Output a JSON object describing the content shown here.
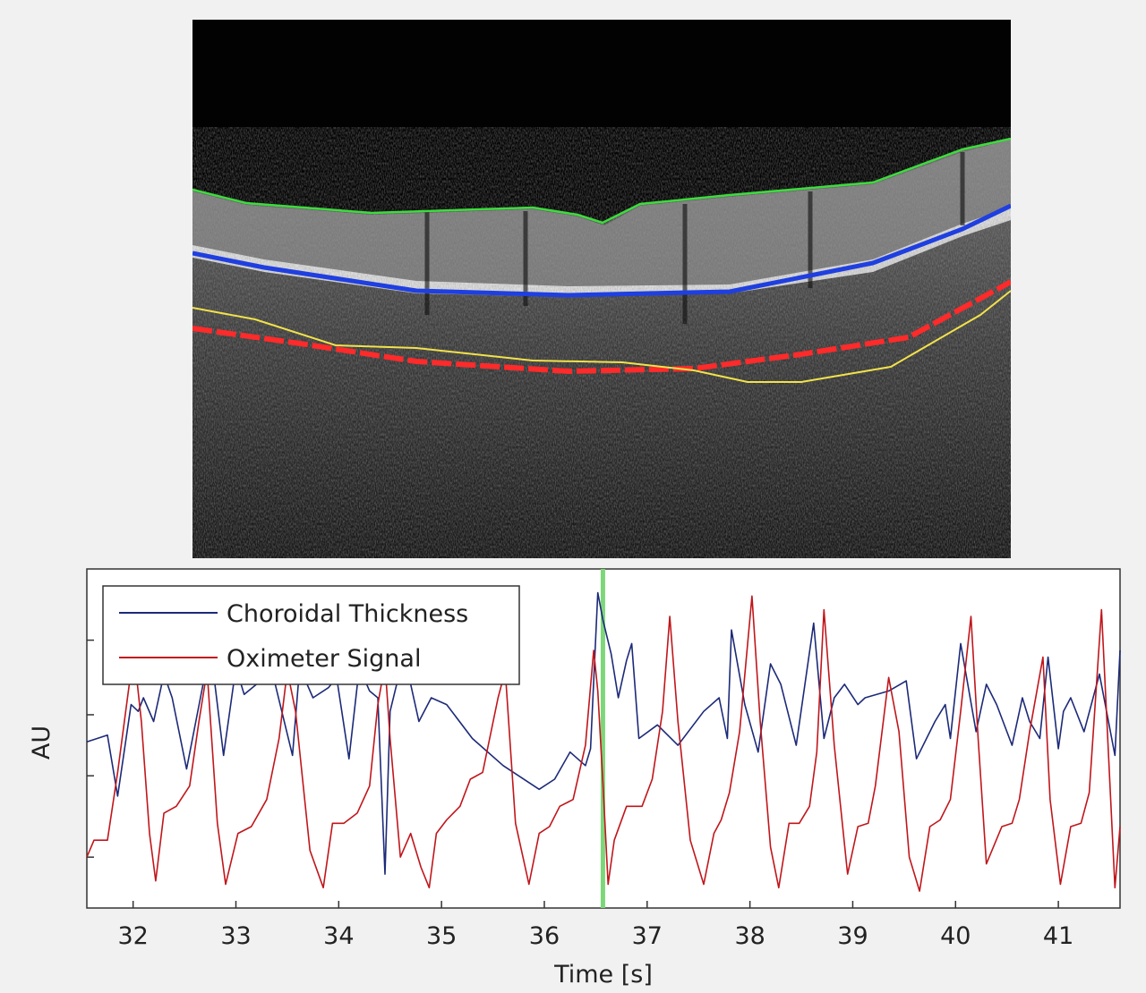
{
  "oct_image": {
    "boundary_colors": {
      "inner_surface": "#3ddc3d",
      "rpe": "#1f3fe0",
      "choroid_red": "#ff2a2a",
      "choroid_yellow": "#f2e24a"
    }
  },
  "chart_data": {
    "type": "line",
    "xlabel": "Time [s]",
    "ylabel": "AU",
    "xlim": [
      31.55,
      41.6
    ],
    "ylim": [
      0,
      1
    ],
    "xticks": [
      32,
      33,
      34,
      35,
      36,
      37,
      38,
      39,
      40,
      41
    ],
    "xtick_labels": [
      "32",
      "33",
      "34",
      "35",
      "36",
      "37",
      "38",
      "39",
      "40",
      "41"
    ],
    "yticks": [
      0.15,
      0.39,
      0.57,
      0.79
    ],
    "grid": false,
    "legend_position": "top-left",
    "marker_line": {
      "x": 36.57,
      "color": "#7ed67a"
    },
    "series": [
      {
        "name": "Choroidal Thickness",
        "color": "#1c2a78",
        "x": [
          31.55,
          31.75,
          31.85,
          31.98,
          32.05,
          32.1,
          32.2,
          32.3,
          32.38,
          32.52,
          32.68,
          32.78,
          32.88,
          33.0,
          33.08,
          33.2,
          33.35,
          33.55,
          33.62,
          33.75,
          33.9,
          33.98,
          34.1,
          34.2,
          34.3,
          34.38,
          34.45,
          34.5,
          34.58,
          34.7,
          34.78,
          34.9,
          35.05,
          35.3,
          35.6,
          35.95,
          36.1,
          36.25,
          36.4,
          36.45,
          36.52,
          36.57,
          36.65,
          36.72,
          36.8,
          36.85,
          36.92,
          37.1,
          37.3,
          37.55,
          37.7,
          37.78,
          37.82,
          37.95,
          38.08,
          38.2,
          38.3,
          38.45,
          38.62,
          38.72,
          38.82,
          38.92,
          39.05,
          39.12,
          39.35,
          39.52,
          39.62,
          39.8,
          39.9,
          39.95,
          40.05,
          40.2,
          40.3,
          40.4,
          40.55,
          40.65,
          40.72,
          40.82,
          40.9,
          41.0,
          41.05,
          41.12,
          41.25,
          41.4,
          41.55,
          41.6
        ],
        "values": [
          0.49,
          0.51,
          0.33,
          0.6,
          0.58,
          0.62,
          0.55,
          0.69,
          0.62,
          0.41,
          0.66,
          0.7,
          0.45,
          0.71,
          0.63,
          0.66,
          0.7,
          0.45,
          0.71,
          0.62,
          0.65,
          0.68,
          0.44,
          0.71,
          0.64,
          0.62,
          0.1,
          0.58,
          0.68,
          0.66,
          0.55,
          0.62,
          0.6,
          0.5,
          0.42,
          0.35,
          0.38,
          0.46,
          0.42,
          0.47,
          0.93,
          0.85,
          0.75,
          0.62,
          0.73,
          0.78,
          0.5,
          0.54,
          0.48,
          0.58,
          0.62,
          0.5,
          0.82,
          0.6,
          0.46,
          0.72,
          0.66,
          0.48,
          0.84,
          0.5,
          0.62,
          0.66,
          0.6,
          0.62,
          0.64,
          0.67,
          0.44,
          0.55,
          0.6,
          0.5,
          0.78,
          0.52,
          0.66,
          0.6,
          0.48,
          0.62,
          0.55,
          0.5,
          0.74,
          0.47,
          0.58,
          0.62,
          0.52,
          0.69,
          0.45,
          0.76
        ]
      },
      {
        "name": "Oximeter Signal",
        "color": "#c0161b",
        "x": [
          31.55,
          31.62,
          31.75,
          31.85,
          31.98,
          32.02,
          32.08,
          32.16,
          32.22,
          32.3,
          32.42,
          32.55,
          32.64,
          32.72,
          32.82,
          32.9,
          33.02,
          33.15,
          33.3,
          33.42,
          33.5,
          33.58,
          33.72,
          33.85,
          33.94,
          34.05,
          34.18,
          34.3,
          34.38,
          34.45,
          34.5,
          34.6,
          34.7,
          34.8,
          34.88,
          34.95,
          35.05,
          35.18,
          35.28,
          35.4,
          35.55,
          35.62,
          35.72,
          35.85,
          35.95,
          36.05,
          36.15,
          36.28,
          36.4,
          36.48,
          36.52,
          36.57,
          36.62,
          36.68,
          36.8,
          36.95,
          37.05,
          37.15,
          37.22,
          37.3,
          37.42,
          37.55,
          37.65,
          37.72,
          37.8,
          37.9,
          38.02,
          38.1,
          38.2,
          38.28,
          38.38,
          38.48,
          38.58,
          38.65,
          38.72,
          38.82,
          38.95,
          39.05,
          39.15,
          39.22,
          39.35,
          39.45,
          39.55,
          39.65,
          39.75,
          39.85,
          39.95,
          40.05,
          40.15,
          40.22,
          40.3,
          40.45,
          40.55,
          40.62,
          40.72,
          40.85,
          40.92,
          41.02,
          41.12,
          41.22,
          41.3,
          41.42,
          41.55,
          41.6
        ],
        "values": [
          0.15,
          0.2,
          0.2,
          0.4,
          0.7,
          0.72,
          0.55,
          0.22,
          0.08,
          0.28,
          0.3,
          0.36,
          0.55,
          0.7,
          0.25,
          0.07,
          0.22,
          0.24,
          0.32,
          0.5,
          0.7,
          0.58,
          0.17,
          0.06,
          0.25,
          0.25,
          0.28,
          0.36,
          0.6,
          0.72,
          0.5,
          0.15,
          0.22,
          0.12,
          0.06,
          0.22,
          0.26,
          0.3,
          0.38,
          0.4,
          0.62,
          0.7,
          0.25,
          0.07,
          0.22,
          0.24,
          0.3,
          0.32,
          0.48,
          0.76,
          0.64,
          0.37,
          0.07,
          0.2,
          0.3,
          0.3,
          0.38,
          0.58,
          0.86,
          0.55,
          0.2,
          0.07,
          0.22,
          0.26,
          0.34,
          0.52,
          0.92,
          0.55,
          0.18,
          0.06,
          0.25,
          0.25,
          0.3,
          0.46,
          0.88,
          0.48,
          0.1,
          0.24,
          0.25,
          0.36,
          0.68,
          0.52,
          0.15,
          0.05,
          0.24,
          0.26,
          0.32,
          0.58,
          0.86,
          0.5,
          0.13,
          0.24,
          0.25,
          0.32,
          0.52,
          0.74,
          0.32,
          0.07,
          0.24,
          0.25,
          0.34,
          0.88,
          0.06,
          0.24
        ]
      }
    ]
  }
}
